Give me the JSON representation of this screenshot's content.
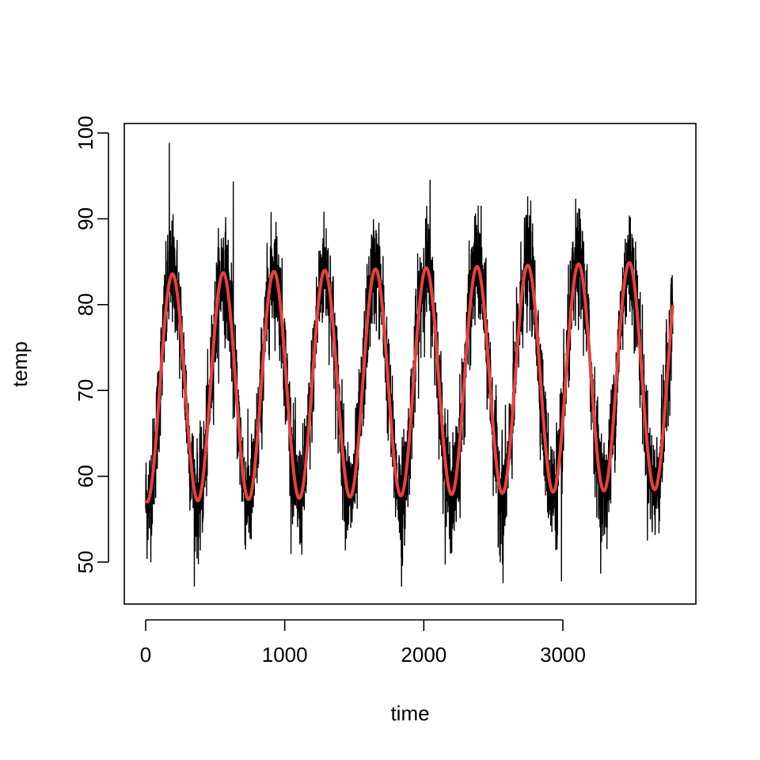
{
  "chart_data": {
    "type": "line",
    "title": "",
    "xlabel": "time",
    "ylabel": "temp",
    "xlim": [
      0,
      3800
    ],
    "ylim": [
      45,
      100
    ],
    "xticks": [
      0,
      1000,
      2000,
      3000
    ],
    "yticks": [
      50,
      60,
      70,
      80,
      90,
      100
    ],
    "grid": false,
    "legend": "none",
    "series": [
      {
        "role": "observed",
        "color": "#000000",
        "x_start": 0,
        "x_end": 3790,
        "description_of_shape": "noisy daily temperature around a seasonal cycle, roughly 10.4 cycles",
        "trend": {
          "min_start": 57,
          "max_start": 83.5,
          "min_end": 58.5,
          "max_end": 85,
          "period": 365
        },
        "noise_sd": 3.2,
        "notable_extremes": [
          {
            "x": 170,
            "y": 98.8
          },
          {
            "x": 1840,
            "y": 47.2
          },
          {
            "x": 2570,
            "y": 47.6
          },
          {
            "x": 2990,
            "y": 47.8
          },
          {
            "x": 2045,
            "y": 94.5
          },
          {
            "x": 630,
            "y": 94.3
          }
        ]
      },
      {
        "role": "fitted",
        "color": "#e8413b",
        "x_start": 0,
        "x_end": 3790,
        "values": [
          {
            "x": 10,
            "y": 57.0
          },
          {
            "x": 200,
            "y": 83.5
          },
          {
            "x": 380,
            "y": 57.2
          },
          {
            "x": 570,
            "y": 83.6
          },
          {
            "x": 745,
            "y": 57.4
          },
          {
            "x": 935,
            "y": 83.9
          },
          {
            "x": 1110,
            "y": 57.5
          },
          {
            "x": 1305,
            "y": 84.0
          },
          {
            "x": 1480,
            "y": 57.7
          },
          {
            "x": 1670,
            "y": 84.3
          },
          {
            "x": 1845,
            "y": 57.8
          },
          {
            "x": 2040,
            "y": 84.4
          },
          {
            "x": 2210,
            "y": 58.0
          },
          {
            "x": 2405,
            "y": 84.5
          },
          {
            "x": 2575,
            "y": 58.2
          },
          {
            "x": 2770,
            "y": 84.6
          },
          {
            "x": 2945,
            "y": 58.3
          },
          {
            "x": 3140,
            "y": 84.8
          },
          {
            "x": 3310,
            "y": 58.5
          },
          {
            "x": 3505,
            "y": 85.0
          },
          {
            "x": 3675,
            "y": 58.6
          },
          {
            "x": 3790,
            "y": 78.5
          }
        ]
      }
    ]
  }
}
